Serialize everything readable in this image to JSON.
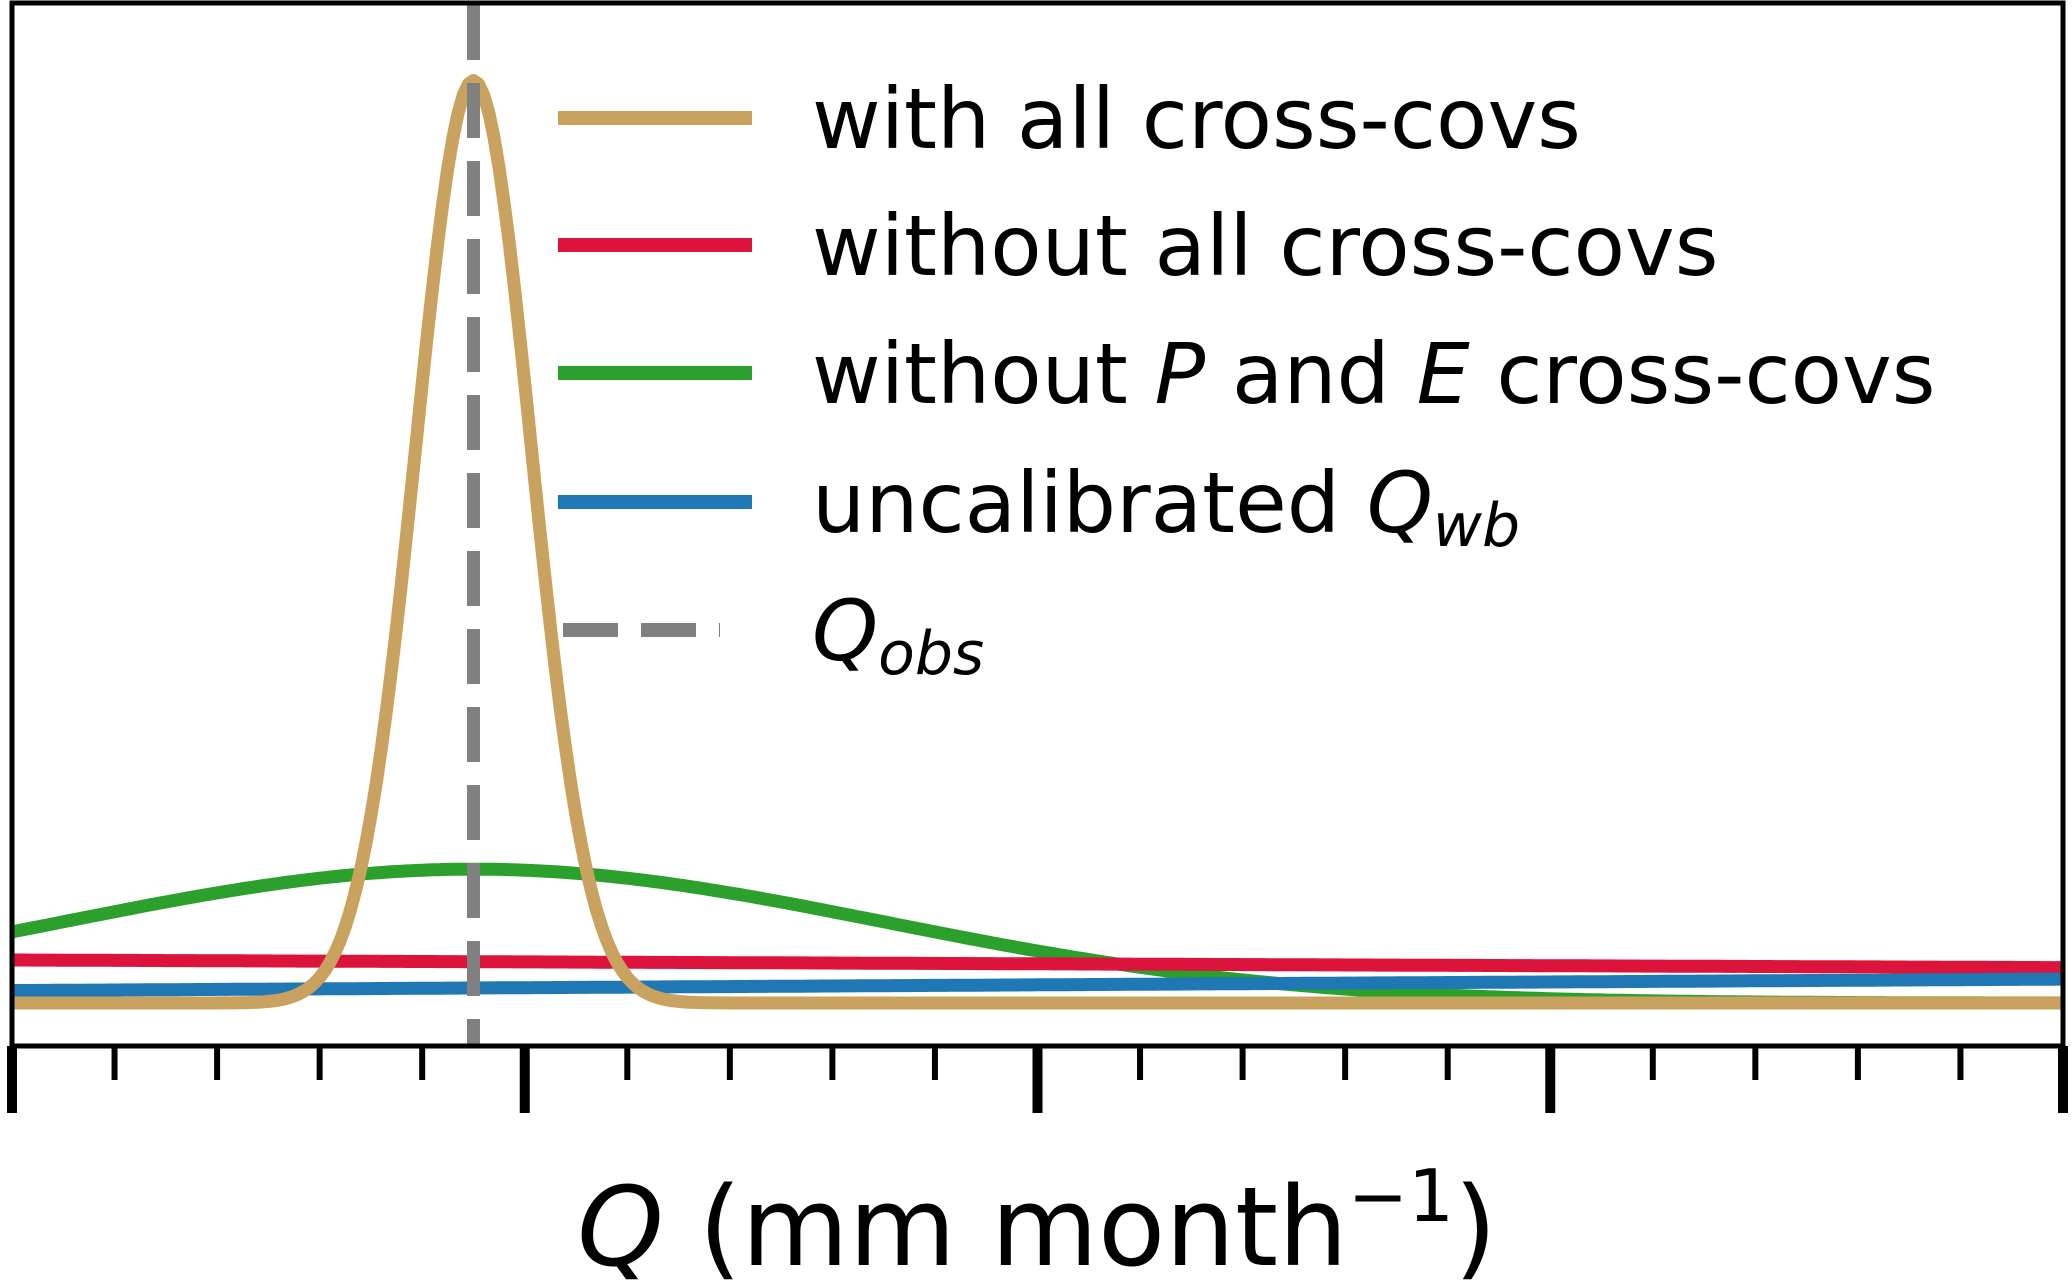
{
  "chart_data": {
    "type": "line",
    "xlabel": "Q (mm month⁻¹)",
    "xlabel_parts": {
      "var": "Q",
      "unit_open": " (mm month",
      "unit_exp": "−1",
      "unit_close": ")"
    },
    "ylabel": "",
    "tick_labels_shown": false,
    "x_major_ticks": 4,
    "x_minor_per_major": 4,
    "grid": false,
    "legend_position": "top-right",
    "series": [
      {
        "key": "gold",
        "name": "with all cross-covs",
        "color": "#C8A25E",
        "kind": "gaussian",
        "mu": 0.225,
        "sigma": 0.028,
        "amplitude": 0.965,
        "baseline": 0.0,
        "legend": {
          "plain": "with all cross-covs"
        }
      },
      {
        "key": "red",
        "name": "without all cross-covs",
        "color": "#DC143C",
        "kind": "linear",
        "start": 0.045,
        "end": 0.037,
        "legend": {
          "plain": "without all cross-covs"
        }
      },
      {
        "key": "green",
        "name": "without P and E cross-covs",
        "color": "#2CA02C",
        "kind": "gaussian",
        "mu": 0.225,
        "sigma": 0.2,
        "amplitude": 0.14,
        "baseline": 0.0,
        "legend": {
          "p1": "without ",
          "i1": "P",
          "p2": " and ",
          "i2": "E",
          "p3": " cross-covs"
        }
      },
      {
        "key": "blue",
        "name": "uncalibrated Q_wb",
        "color": "#1F77B4",
        "kind": "linear",
        "start": 0.013,
        "end": 0.025,
        "legend": {
          "p1": "uncalibrated ",
          "i1": "Q",
          "sub": "wb"
        }
      }
    ],
    "reference_lines": [
      {
        "key": "qobs",
        "name": "Q_obs",
        "x": 0.225,
        "color": "#808080",
        "style": "dashed",
        "legend": {
          "i1": "Q",
          "sub": "obs"
        }
      }
    ]
  }
}
